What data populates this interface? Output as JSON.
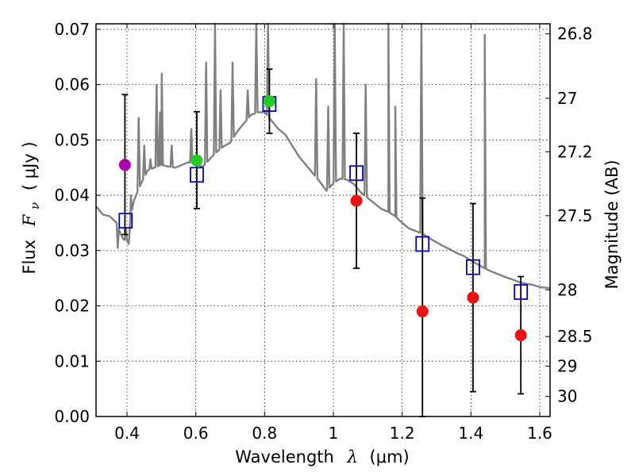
{
  "chart_data": {
    "type": "scatter",
    "xlabel_text": "Wavelength",
    "xlabel_symbol": "λ",
    "xlabel_unit": "(μm)",
    "ylabel_text": "Flux",
    "ylabel_symbol": "F",
    "ylabel_subscript": "ν",
    "ylabel_unit": "( μJy )",
    "y2label": "Magnitude (AB)",
    "xlim": [
      0.31,
      1.63
    ],
    "ylim": [
      0.0,
      0.071
    ],
    "x_ticks": [
      0.4,
      0.6,
      0.8,
      1.0,
      1.2,
      1.4,
      1.6
    ],
    "x_tick_labels": [
      "0.4",
      "0.6",
      "0.8",
      "1",
      "1.2",
      "1.4",
      "1.6"
    ],
    "y_ticks": [
      0.0,
      0.01,
      0.02,
      0.03,
      0.04,
      0.05,
      0.06,
      0.07
    ],
    "y_tick_labels": [
      "0.00",
      "0.01",
      "0.02",
      "0.03",
      "0.04",
      "0.05",
      "0.06",
      "0.07"
    ],
    "y2_tick_labels": [
      "26.8",
      "27",
      "27.2",
      "27.5",
      "28",
      "28.5",
      "29",
      "30"
    ],
    "y2_tick_mags": [
      26.8,
      27.0,
      27.2,
      27.5,
      28.0,
      28.5,
      29.0,
      30.0
    ],
    "grid": true,
    "colors": {
      "template": "#808080",
      "magenta": "#aa00aa",
      "green": "#22cc22",
      "red": "#ee1111",
      "model_box": "#0000cc",
      "errorbar": "#000000"
    },
    "observed": [
      {
        "x": 0.394,
        "y": 0.0455,
        "err_low": 0.0126,
        "err_high": 0.0127,
        "color": "magenta"
      },
      {
        "x": 0.603,
        "y": 0.0463,
        "err_low": 0.0087,
        "err_high": 0.0088,
        "color": "green"
      },
      {
        "x": 0.814,
        "y": 0.057,
        "err_low": 0.0058,
        "err_high": 0.0058,
        "color": "green"
      },
      {
        "x": 1.067,
        "y": 0.039,
        "err_low": 0.0122,
        "err_high": 0.0122,
        "color": "red"
      },
      {
        "x": 1.259,
        "y": 0.019,
        "err_low": 0.019,
        "err_high": 0.0205,
        "color": "red"
      },
      {
        "x": 1.406,
        "y": 0.0215,
        "err_low": 0.017,
        "err_high": 0.017,
        "color": "red"
      },
      {
        "x": 1.545,
        "y": 0.0147,
        "err_low": 0.0106,
        "err_high": 0.0106,
        "color": "red"
      }
    ],
    "model_photometry": [
      {
        "x": 0.396,
        "y": 0.0354
      },
      {
        "x": 0.603,
        "y": 0.0437
      },
      {
        "x": 0.814,
        "y": 0.0565
      },
      {
        "x": 1.067,
        "y": 0.044
      },
      {
        "x": 1.259,
        "y": 0.0312
      },
      {
        "x": 1.406,
        "y": 0.027
      },
      {
        "x": 1.545,
        "y": 0.0225
      }
    ],
    "template_spectrum": {
      "continuum": [
        [
          0.31,
          0.038
        ],
        [
          0.33,
          0.0365
        ],
        [
          0.35,
          0.0362
        ],
        [
          0.37,
          0.035
        ],
        [
          0.38,
          0.0332
        ],
        [
          0.39,
          0.032
        ],
        [
          0.4,
          0.0318
        ],
        [
          0.405,
          0.0312
        ],
        [
          0.41,
          0.036
        ],
        [
          0.42,
          0.039
        ],
        [
          0.44,
          0.042
        ],
        [
          0.46,
          0.0445
        ],
        [
          0.48,
          0.045
        ],
        [
          0.5,
          0.0455
        ],
        [
          0.52,
          0.0452
        ],
        [
          0.54,
          0.045
        ],
        [
          0.56,
          0.0455
        ],
        [
          0.58,
          0.046
        ],
        [
          0.6,
          0.0455
        ],
        [
          0.62,
          0.0452
        ],
        [
          0.64,
          0.0465
        ],
        [
          0.66,
          0.0478
        ],
        [
          0.68,
          0.0488
        ],
        [
          0.7,
          0.0495
        ],
        [
          0.72,
          0.0515
        ],
        [
          0.74,
          0.053
        ],
        [
          0.76,
          0.0545
        ],
        [
          0.78,
          0.055
        ],
        [
          0.8,
          0.055
        ],
        [
          0.82,
          0.0535
        ],
        [
          0.84,
          0.052
        ],
        [
          0.86,
          0.051
        ],
        [
          0.88,
          0.049
        ],
        [
          0.9,
          0.047
        ],
        [
          0.92,
          0.0455
        ],
        [
          0.94,
          0.044
        ],
        [
          0.96,
          0.0425
        ],
        [
          0.98,
          0.0408
        ],
        [
          1.0,
          0.0422
        ],
        [
          1.02,
          0.043
        ],
        [
          1.04,
          0.0428
        ],
        [
          1.06,
          0.042
        ],
        [
          1.08,
          0.0405
        ],
        [
          1.1,
          0.0395
        ],
        [
          1.12,
          0.0385
        ],
        [
          1.14,
          0.0375
        ],
        [
          1.16,
          0.037
        ],
        [
          1.18,
          0.0362
        ],
        [
          1.2,
          0.035
        ],
        [
          1.22,
          0.034
        ],
        [
          1.24,
          0.0335
        ],
        [
          1.26,
          0.033
        ],
        [
          1.28,
          0.0322
        ],
        [
          1.3,
          0.0315
        ],
        [
          1.32,
          0.0308
        ],
        [
          1.34,
          0.0302
        ],
        [
          1.36,
          0.0295
        ],
        [
          1.38,
          0.029
        ],
        [
          1.4,
          0.0282
        ],
        [
          1.42,
          0.0275
        ],
        [
          1.44,
          0.0268
        ],
        [
          1.46,
          0.0262
        ],
        [
          1.48,
          0.0257
        ],
        [
          1.5,
          0.0252
        ],
        [
          1.52,
          0.0248
        ],
        [
          1.54,
          0.0243
        ],
        [
          1.56,
          0.024
        ],
        [
          1.58,
          0.0238
        ],
        [
          1.6,
          0.0234
        ],
        [
          1.63,
          0.0232
        ]
      ],
      "emission_lines": [
        [
          0.373,
          0.0305
        ],
        [
          0.397,
          0.034
        ],
        [
          0.411,
          0.04
        ],
        [
          0.434,
          0.054
        ],
        [
          0.45,
          0.049
        ],
        [
          0.468,
          0.0465
        ],
        [
          0.486,
          0.06
        ],
        [
          0.496,
          0.055
        ],
        [
          0.501,
          0.062
        ],
        [
          0.53,
          0.049
        ],
        [
          0.587,
          0.052
        ],
        [
          0.63,
          0.064
        ],
        [
          0.656,
          0.072
        ],
        [
          0.672,
          0.059
        ],
        [
          0.707,
          0.064
        ],
        [
          0.751,
          0.059
        ],
        [
          0.776,
          0.072
        ],
        [
          0.81,
          0.072
        ],
        [
          0.95,
          0.061
        ],
        [
          0.985,
          0.056
        ],
        [
          1.004,
          0.072
        ],
        [
          1.03,
          0.072
        ],
        [
          1.094,
          0.06
        ],
        [
          1.16,
          0.072
        ],
        [
          1.18,
          0.056
        ],
        [
          1.256,
          0.072
        ],
        [
          1.44,
          0.069
        ]
      ]
    }
  }
}
